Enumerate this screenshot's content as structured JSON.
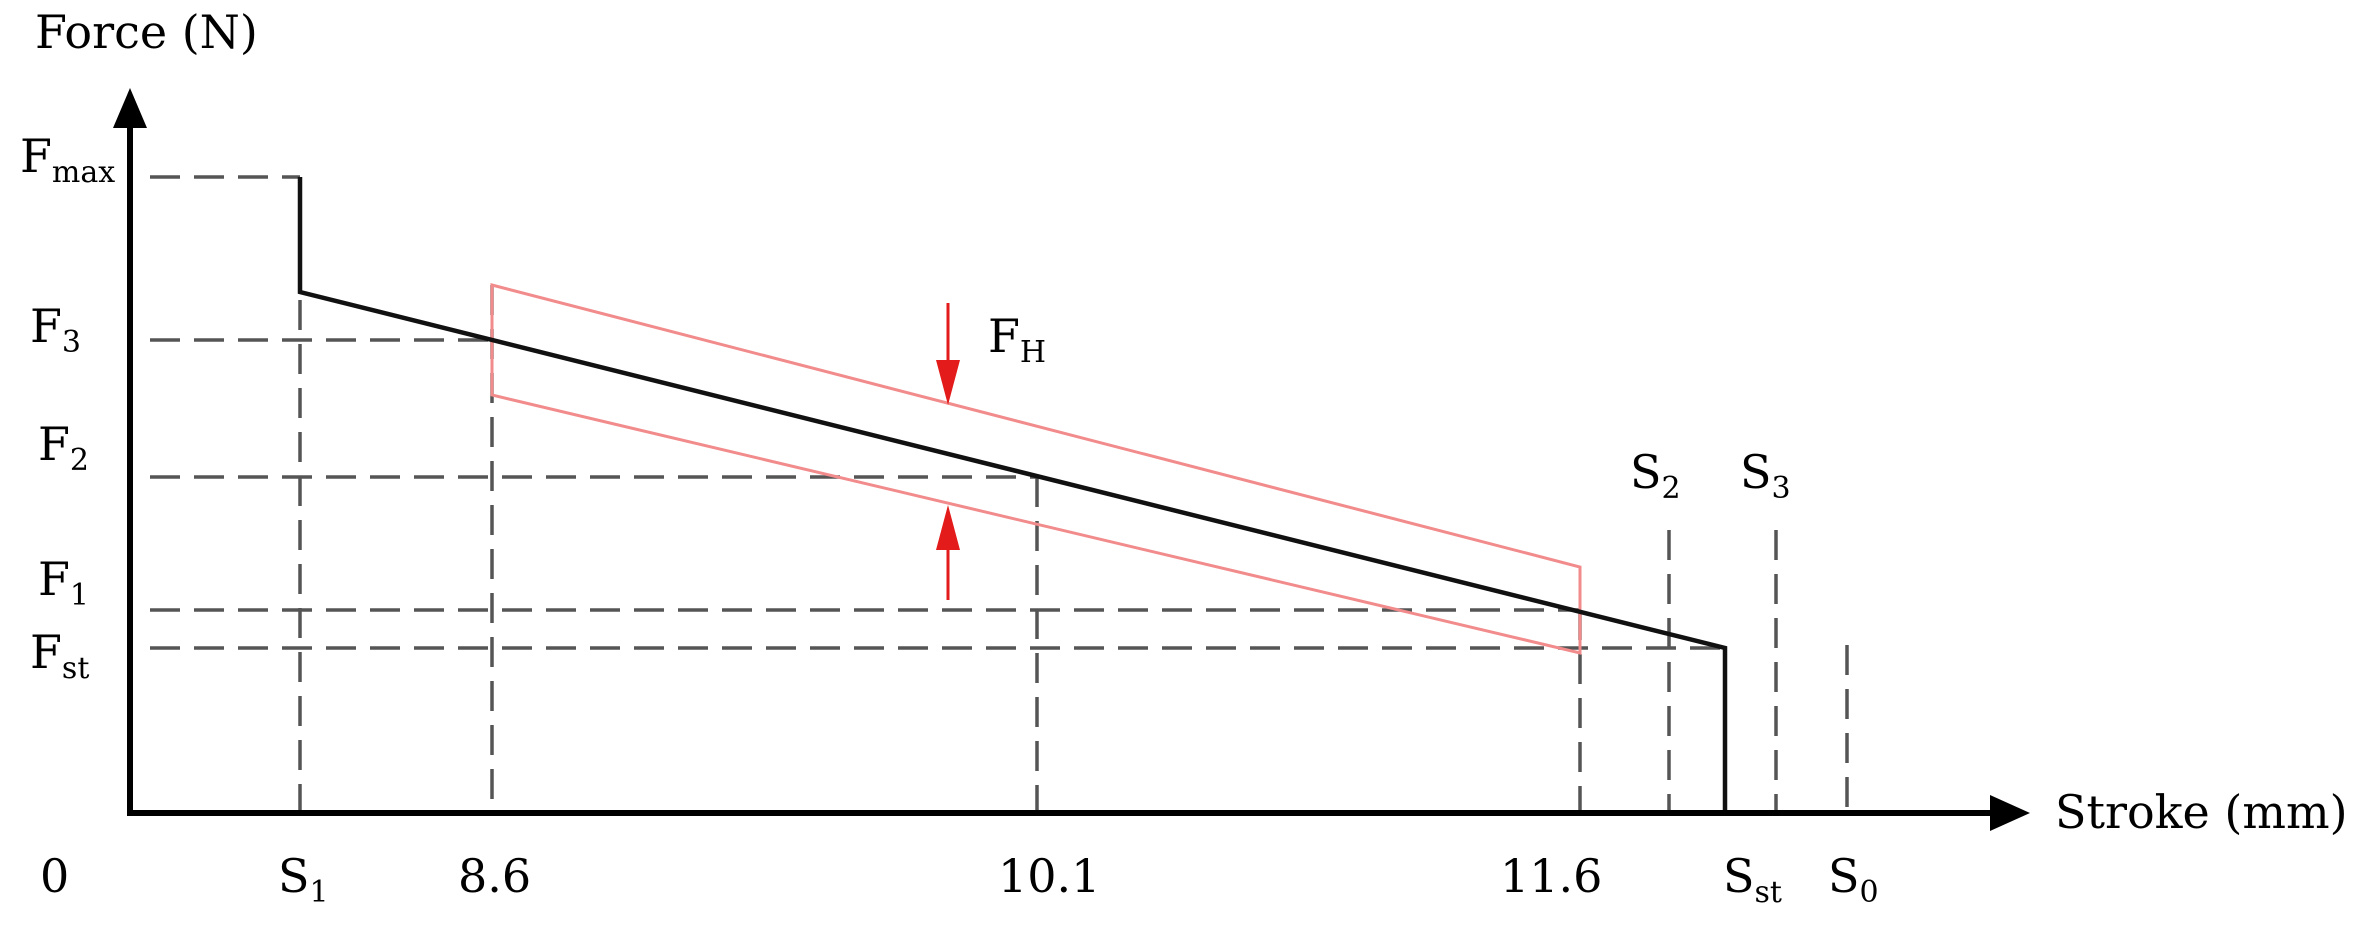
{
  "axes": {
    "y_label": "Force (N)",
    "x_label": "Stroke (mm)",
    "origin_label": "0"
  },
  "force_ticks": {
    "fmax": {
      "main": "F",
      "sub": "max"
    },
    "f3": {
      "main": "F",
      "sub": "3"
    },
    "f2": {
      "main": "F",
      "sub": "2"
    },
    "f1": {
      "main": "F",
      "sub": "1"
    },
    "fst": {
      "main": "F",
      "sub": "st"
    }
  },
  "stroke_ticks": {
    "s1": {
      "main": "S",
      "sub": "1"
    },
    "v86": "8.6",
    "v101": "10.1",
    "v116": "11.6",
    "sst": {
      "main": "S",
      "sub": "st"
    },
    "s0": {
      "main": "S",
      "sub": "0"
    }
  },
  "upper_markers": {
    "s2": {
      "main": "S",
      "sub": "2"
    },
    "s3": {
      "main": "S",
      "sub": "3"
    }
  },
  "hysteresis": {
    "main": "F",
    "sub": "H"
  },
  "colors": {
    "axis": "#000000",
    "characteristic": "#111111",
    "hysteresis_band": "#f28b8b",
    "hysteresis_arrows": "#e31b1b",
    "guide_lines": "#555555"
  }
}
